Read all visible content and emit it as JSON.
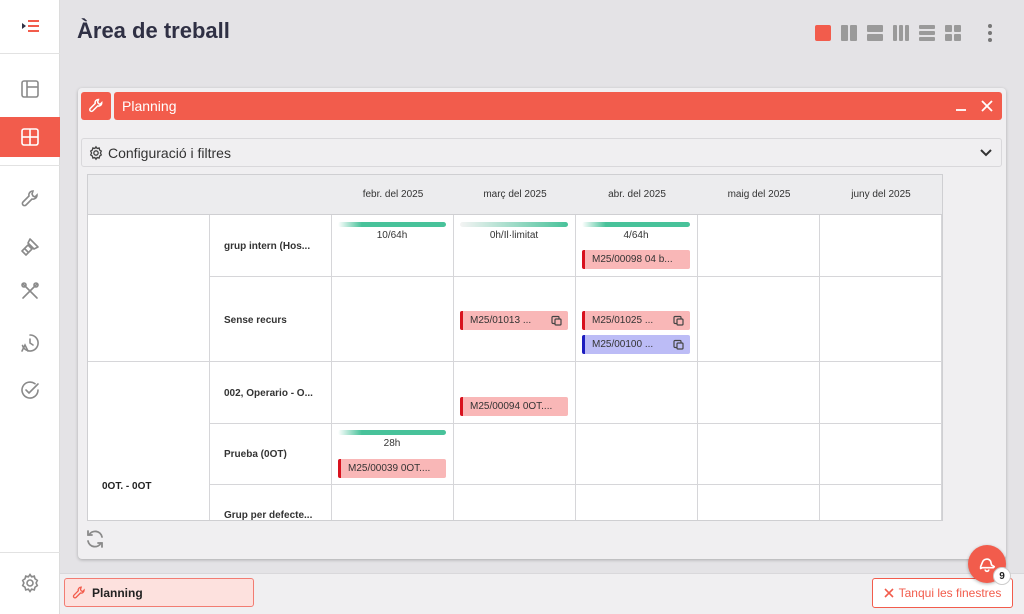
{
  "header": {
    "title": "Àrea de treball"
  },
  "colors": {
    "accent": "#f25c4c",
    "capacity": "#48c29a",
    "task_red": "#d8121e",
    "task_blue": "#1d1dbf"
  },
  "sidebar": {
    "items": [
      {
        "icon": "menu-icon"
      },
      {
        "icon": "panel-icon"
      },
      {
        "icon": "grid-icon",
        "active": true
      },
      {
        "icon": "wrench-icon"
      },
      {
        "icon": "brush-icon"
      },
      {
        "icon": "tools-icon"
      },
      {
        "icon": "history-icon"
      },
      {
        "icon": "check-circle-icon"
      },
      {
        "icon": "settings-icon"
      }
    ]
  },
  "window": {
    "title": "Planning",
    "config_label": "Configuració i filtres"
  },
  "planning": {
    "months": [
      "febr. del 2025",
      "març del 2025",
      "abr. del 2025",
      "maig del 2025",
      "juny del 2025"
    ],
    "groups": [
      {
        "label": ""
      },
      {
        "label": "0OT. - 0OT"
      }
    ],
    "rows": [
      {
        "label": "grup intern (Hos...",
        "capacities": [
          "10/64h",
          "0h/Il·limitat",
          "4/64h"
        ]
      },
      {
        "label": "Sense recurs"
      },
      {
        "label": "002, Operario - O..."
      },
      {
        "label": "Prueba (0OT)",
        "capacities": [
          "28h"
        ]
      },
      {
        "label": "Grup per defecte..."
      }
    ],
    "tasks": [
      {
        "label": "M25/00098 04 b...",
        "color": "red"
      },
      {
        "label": "M25/01013 ...",
        "color": "red"
      },
      {
        "label": "M25/01025 ...",
        "color": "red"
      },
      {
        "label": "M25/00100 ...",
        "color": "blue"
      },
      {
        "label": "M25/00094 0OT....",
        "color": "red"
      },
      {
        "label": "M25/00039 0OT....",
        "color": "red"
      }
    ]
  },
  "taskbar": {
    "open_window": "Planning",
    "close_all": "Tanqui les finestres",
    "notification_count": "9"
  }
}
